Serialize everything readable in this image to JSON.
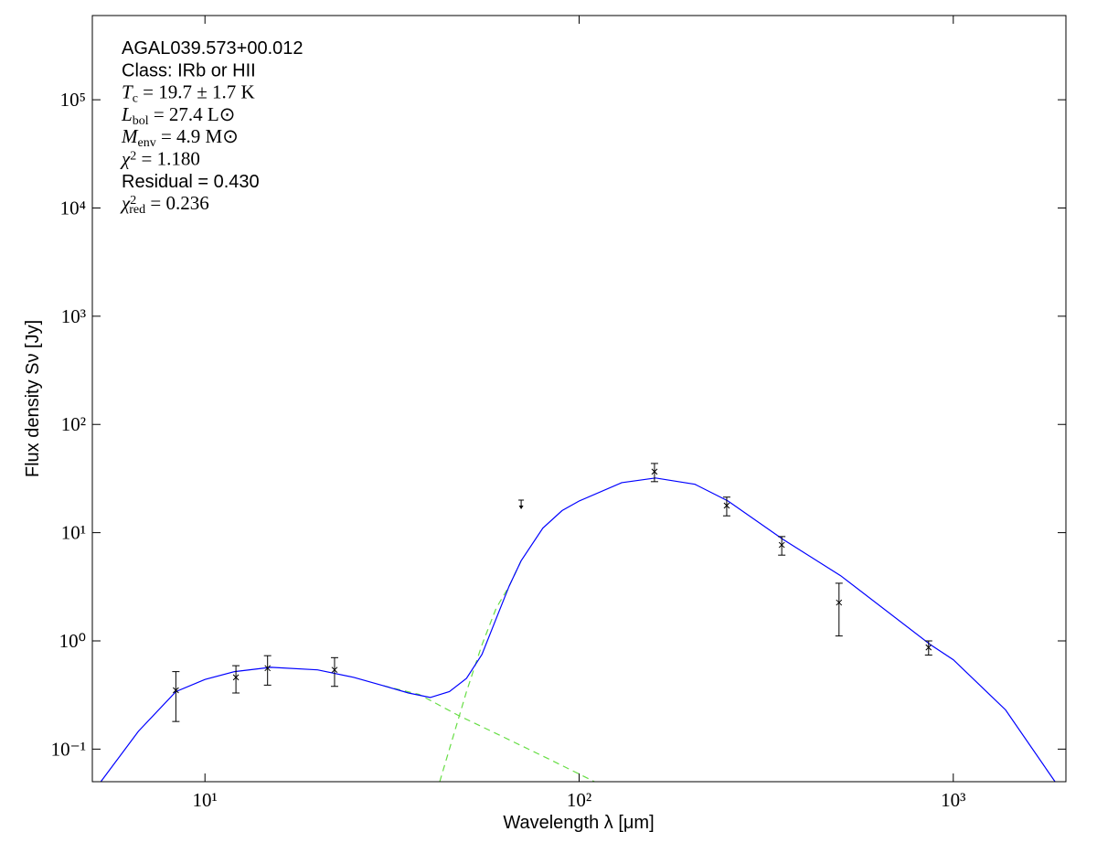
{
  "chart_data": {
    "type": "scatter",
    "x_label": "Wavelength λ [μm]",
    "y_label": "Flux density Sν [Jy]",
    "xscale": "log",
    "yscale": "log",
    "xlim": [
      5,
      2000
    ],
    "ylim": [
      0.05,
      600000
    ],
    "xticks": [
      {
        "value": 10,
        "label": "10¹"
      },
      {
        "value": 100,
        "label": "10²"
      },
      {
        "value": 1000,
        "label": "10³"
      }
    ],
    "yticks": [
      {
        "value": 0.1,
        "label": "10⁻¹"
      },
      {
        "value": 1,
        "label": "10⁰"
      },
      {
        "value": 10,
        "label": "10¹"
      },
      {
        "value": 100,
        "label": "10²"
      },
      {
        "value": 1000,
        "label": "10³"
      },
      {
        "value": 10000,
        "label": "10⁴"
      },
      {
        "value": 100000,
        "label": "10⁵"
      }
    ],
    "points": {
      "color": "#000000",
      "x": [
        8.36,
        12.1,
        14.7,
        22.2,
        159,
        248,
        348,
        495,
        859
      ],
      "values": [
        0.35,
        0.46,
        0.56,
        0.54,
        36.6,
        17.8,
        7.7,
        2.26,
        0.87
      ],
      "errors": [
        0.17,
        0.13,
        0.17,
        0.16,
        7,
        3.5,
        1.5,
        1.15,
        0.13
      ]
    },
    "upper_limits": {
      "color": "#000000",
      "x": [
        70
      ],
      "values": [
        20
      ]
    },
    "curves": [
      {
        "color": "#66dd44",
        "style": "dashed",
        "x": [
          30,
          37.4,
          47.3,
          62.6,
          83,
          110
        ],
        "values": [
          0.385,
          0.32,
          0.207,
          0.13,
          0.081,
          0.05
        ]
      },
      {
        "color": "#66dd44",
        "style": "dashed",
        "x": [
          42.4,
          45,
          50,
          55,
          60,
          65,
          70
        ],
        "values": [
          0.05,
          0.1,
          0.34,
          0.92,
          2.0,
          3.2,
          5.5
        ]
      },
      {
        "color": "#0000ff",
        "style": "solid",
        "x": [
          5.27,
          6.64,
          8.36,
          10,
          12,
          15,
          20,
          25,
          30,
          35,
          40,
          45,
          50,
          55,
          60,
          65,
          70,
          80,
          90,
          100,
          130,
          160,
          204,
          250,
          350,
          500,
          870,
          1000,
          1380,
          1870
        ],
        "values": [
          0.05,
          0.146,
          0.34,
          0.44,
          0.52,
          0.57,
          0.54,
          0.46,
          0.385,
          0.33,
          0.3,
          0.34,
          0.45,
          0.75,
          1.6,
          3.2,
          5.5,
          11,
          16,
          19.6,
          29,
          32,
          28,
          19.6,
          8.7,
          4.0,
          0.92,
          0.67,
          0.23,
          0.05
        ]
      }
    ],
    "annotations": [
      {
        "text": "AGAL039.573+00.012"
      },
      {
        "text": "Class: IRb or HII"
      },
      {
        "math": true,
        "text": "T",
        "sub": "c",
        "rest": " = 19.7 ± 1.7 K"
      },
      {
        "math": true,
        "text": "L",
        "sub": "bol",
        "rest": " = 27.4 L⊙"
      },
      {
        "math": true,
        "text": "M",
        "sub": "env",
        "rest": " = 4.9 M⊙"
      },
      {
        "math": true,
        "text": "χ",
        "sup": "2",
        "rest": " = 1.180"
      },
      {
        "text": "Residual = 0.430"
      },
      {
        "math": true,
        "text": "χ",
        "sup": "2",
        "sub": "red",
        "rest": " = 0.236"
      }
    ]
  }
}
